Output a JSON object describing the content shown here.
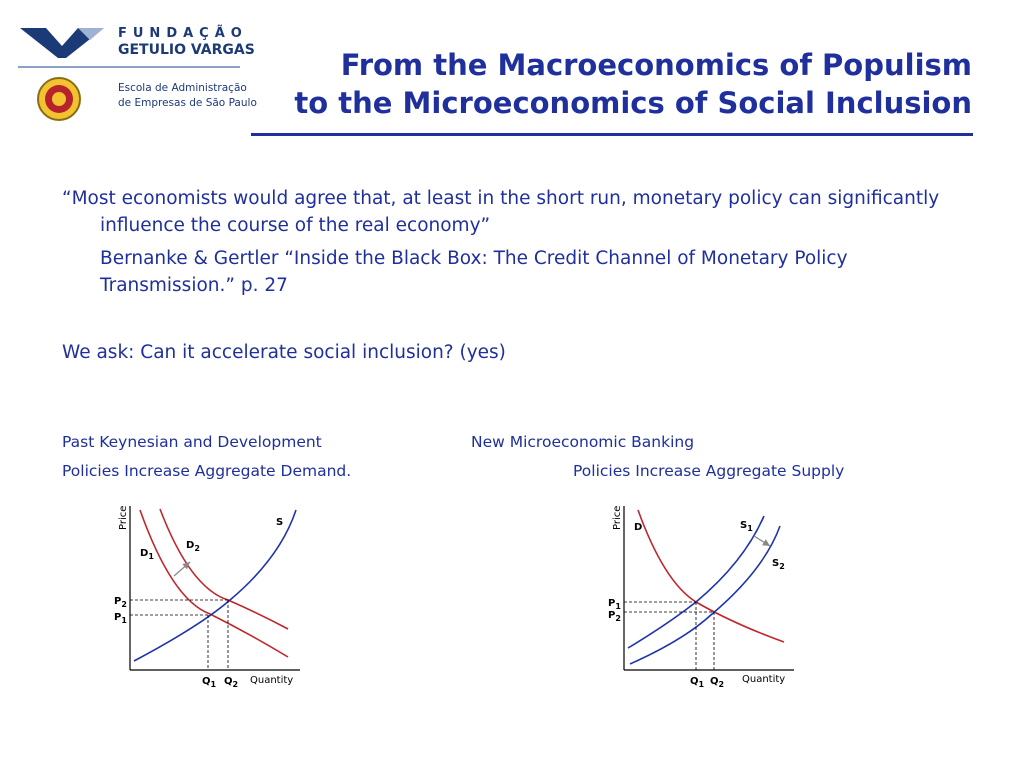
{
  "logo": {
    "org_line1": "FUNDAÇÃO",
    "org_line2": "GETULIO VARGAS",
    "school_line1": "Escola de Administração",
    "school_line2": "de Empresas de São Paulo"
  },
  "title": {
    "line1": "From the Macroeconomics of Populism",
    "line2": "to the Microeconomics of Social Inclusion"
  },
  "content": {
    "quote": "“Most economists would agree that, at least in the short run, monetary policy can significantly influence the course of the real economy”",
    "citation": "Bernanke & Gertler “Inside the Black Box: The Credit Channel of Monetary Policy Transmission.” p. 27",
    "ask": "We ask: Can it accelerate social inclusion? (yes)"
  },
  "captions": {
    "left_line1": "Past Keynesian and Development",
    "left_line2": "Policies Increase Aggregate Demand.",
    "right_line1": "New Microeconomic Banking",
    "right_line2": "Policies Increase Aggregate Supply"
  },
  "colors": {
    "title_blue": "#1f2f9c",
    "demand_red": "#c0262d",
    "supply_blue": "#1f35a8"
  },
  "chart_data": [
    {
      "type": "line",
      "title": "",
      "xlabel": "Quantity",
      "ylabel": "Price",
      "series": [
        {
          "name": "D1",
          "role": "demand",
          "curve": "downward-convex"
        },
        {
          "name": "D2",
          "role": "demand",
          "curve": "downward-convex"
        },
        {
          "name": "S",
          "role": "supply",
          "curve": "upward-convex"
        }
      ],
      "annotations": {
        "shift": "D1 → D2 (arrow)"
      },
      "price_marks": [
        "P2",
        "P1"
      ],
      "quantity_marks": [
        "Q1",
        "Q2"
      ]
    },
    {
      "type": "line",
      "title": "",
      "xlabel": "Quantity",
      "ylabel": "Price",
      "series": [
        {
          "name": "D",
          "role": "demand",
          "curve": "downward-convex"
        },
        {
          "name": "S1",
          "role": "supply",
          "curve": "upward-convex"
        },
        {
          "name": "S2",
          "role": "supply",
          "curve": "upward-convex"
        }
      ],
      "annotations": {
        "shift": "S1 → S2 (arrow)"
      },
      "price_marks": [
        "P1",
        "P2"
      ],
      "quantity_marks": [
        "Q1",
        "Q2"
      ]
    }
  ]
}
